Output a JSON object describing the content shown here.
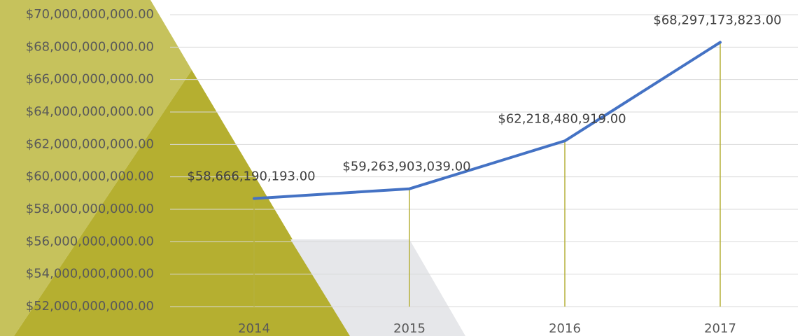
{
  "chart_data": {
    "type": "line",
    "categories": [
      "2014",
      "2015",
      "2016",
      "2017"
    ],
    "values": [
      58666190193,
      59263903039,
      62218480919,
      68297173823
    ],
    "value_labels": [
      "$58,666,190,193.00",
      "$59,263,903,039.00",
      "$62,218,480,919.00",
      "$68,297,173,823.00"
    ],
    "color": "#4472c4",
    "drop_line_color": "#b5b03a",
    "ylim": [
      52000000000,
      70000000000
    ],
    "yticks": [
      {
        "value": 52000000000,
        "label": "$52,000,000,000.00"
      },
      {
        "value": 54000000000,
        "label": "$54,000,000,000.00"
      },
      {
        "value": 56000000000,
        "label": "$56,000,000,000.00"
      },
      {
        "value": 58000000000,
        "label": "$58,000,000,000.00"
      },
      {
        "value": 60000000000,
        "label": "$60,000,000,000.00"
      },
      {
        "value": 62000000000,
        "label": "$62,000,000,000.00"
      },
      {
        "value": 64000000000,
        "label": "$64,000,000,000.00"
      },
      {
        "value": 66000000000,
        "label": "$66,000,000,000.00"
      },
      {
        "value": 68000000000,
        "label": "$68,000,000,000.00"
      },
      {
        "value": 70000000000,
        "label": "$70,000,000,000.00"
      }
    ],
    "grid": true
  }
}
